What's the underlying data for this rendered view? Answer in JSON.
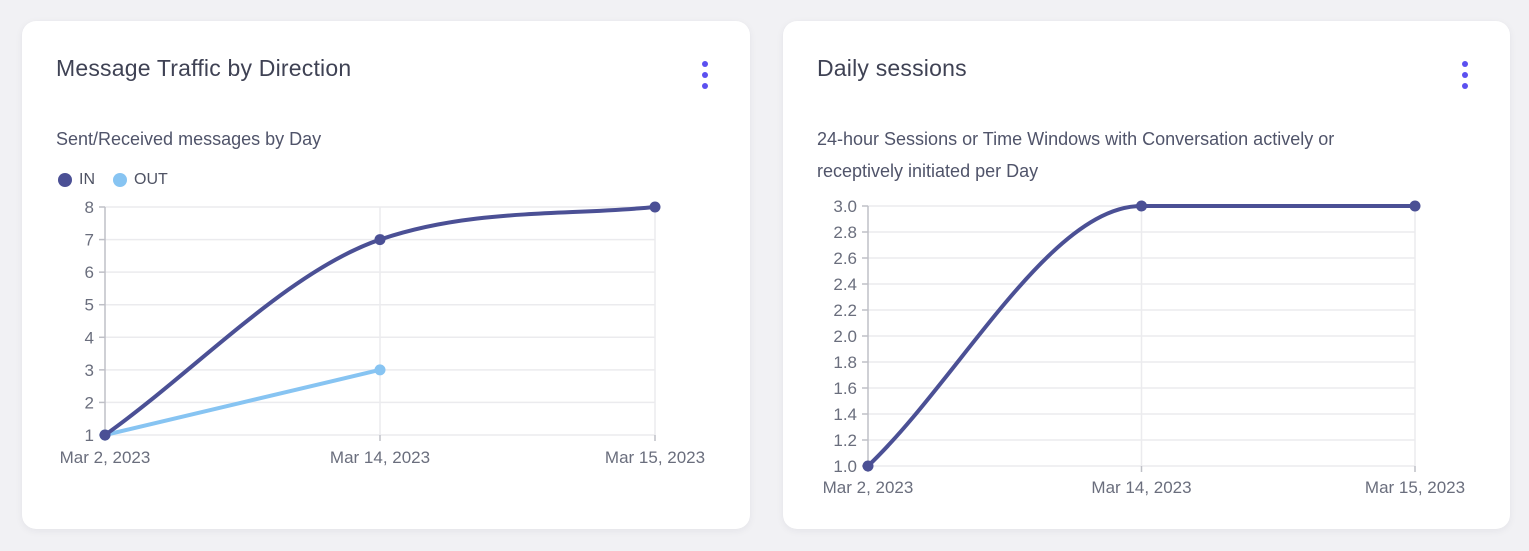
{
  "theme": {
    "page_bg": "#f1f1f4",
    "card_bg": "#ffffff",
    "accent": "#5b50f0",
    "title_color": "#3f4254",
    "subtitle_color": "#50546a",
    "tick_color": "#6a6e7d",
    "grid_color": "#ebebee",
    "axis_color": "#bfc0c7"
  },
  "cards": [
    {
      "title": "Message Traffic by Direction",
      "subtitle": "Sent/Received messages by Day"
    },
    {
      "title": "Daily sessions",
      "subtitle": "24-hour Sessions or Time Windows with Conversation actively or receptively initiated per Day"
    }
  ],
  "chart_data": [
    {
      "type": "line",
      "title": "Message Traffic by Direction",
      "subtitle": "Sent/Received messages by Day",
      "categories": [
        "Mar 2, 2023",
        "Mar 14, 2023",
        "Mar 15, 2023"
      ],
      "series": [
        {
          "name": "IN",
          "color": "#4b5095",
          "values": [
            1,
            7,
            8
          ]
        },
        {
          "name": "OUT",
          "color": "#87c4f2",
          "values": [
            1,
            3,
            null
          ]
        }
      ],
      "ylim": [
        1,
        8
      ],
      "yticks": [
        "1",
        "2",
        "3",
        "4",
        "5",
        "6",
        "7",
        "8"
      ],
      "xlabel": "",
      "ylabel": "",
      "grid": true,
      "legend_position": "top-left",
      "line_style": "smooth"
    },
    {
      "type": "line",
      "title": "Daily sessions",
      "subtitle": "24-hour Sessions or Time Windows with Conversation actively or receptively initiated per Day",
      "categories": [
        "Mar 2, 2023",
        "Mar 14, 2023",
        "Mar 15, 2023"
      ],
      "series": [
        {
          "name": "Daily sessions",
          "color": "#4b5095",
          "values": [
            1.0,
            3.0,
            3.0
          ]
        }
      ],
      "ylim": [
        1.0,
        3.0
      ],
      "yticks": [
        "1.0",
        "1.2",
        "1.4",
        "1.6",
        "1.8",
        "2.0",
        "2.2",
        "2.4",
        "2.6",
        "2.8",
        "3.0"
      ],
      "xlabel": "",
      "ylabel": "",
      "grid": true,
      "legend_position": "none",
      "line_style": "smooth"
    }
  ]
}
